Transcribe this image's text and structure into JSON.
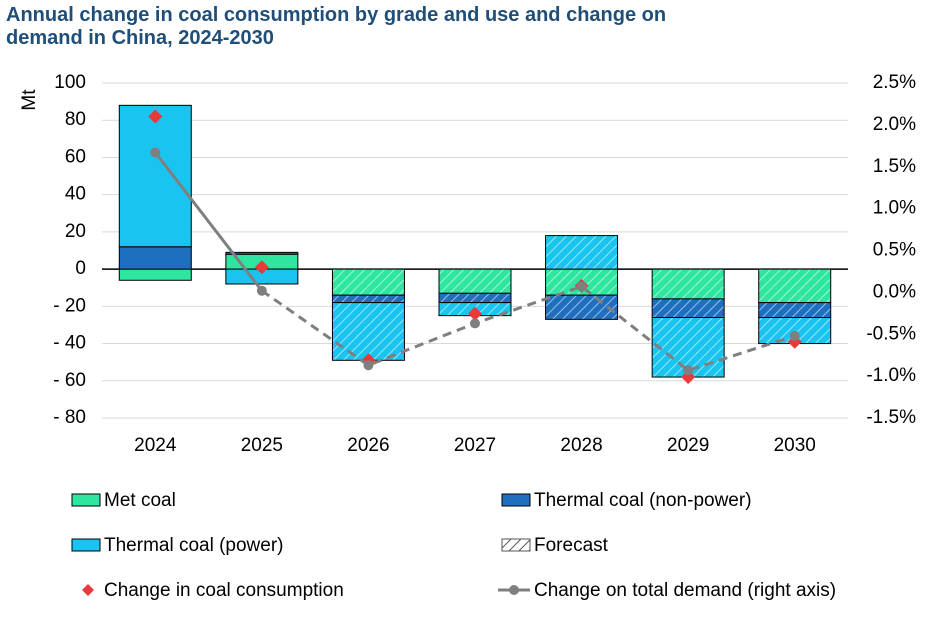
{
  "chart_data": {
    "type": "bar",
    "title": "Annual change in coal consumption by grade and use and change on demand in China, 2024-2030",
    "y_label": "Mt",
    "categories": [
      "2024",
      "2025",
      "2026",
      "2027",
      "2028",
      "2029",
      "2030"
    ],
    "forecast_start": "2026",
    "forecast_label": "Forecast",
    "series": [
      {
        "name": "Met coal",
        "type": "bar",
        "color": "#2ee6a0",
        "values": [
          -6,
          8,
          -14,
          -13,
          -14,
          -16,
          -18
        ]
      },
      {
        "name": "Thermal coal (non-power)",
        "type": "bar",
        "color": "#1f6fc0",
        "values": [
          12,
          1,
          -4,
          -5,
          -13,
          -10,
          -8
        ]
      },
      {
        "name": "Thermal coal (power)",
        "type": "bar",
        "color": "#19c5f0",
        "values": [
          76,
          -8,
          -31,
          -7,
          18,
          -32,
          -14
        ]
      },
      {
        "name": "Change in coal consumption",
        "type": "scatter",
        "color": "#e8393b",
        "values": [
          82,
          1,
          -49,
          -24,
          -9,
          -58,
          -39
        ]
      },
      {
        "name": "Change on total demand (right axis)",
        "type": "line",
        "axis": "y2",
        "color": "#7f7f7f",
        "values": [
          1.67,
          0.02,
          -0.87,
          -0.37,
          0.07,
          -0.93,
          -0.52
        ]
      }
    ],
    "ylim": [
      -80,
      100
    ],
    "yticks": [
      100,
      80,
      60,
      40,
      20,
      0,
      {
        "value": -20,
        "label": "- 20"
      },
      {
        "value": -40,
        "label": "- 40"
      },
      {
        "value": -60,
        "label": "- 60"
      },
      {
        "value": -80,
        "label": "- 80"
      }
    ],
    "y2lim": [
      -1.5,
      2.5
    ],
    "y2ticks": [
      {
        "value": 2.5,
        "label": "2.5%"
      },
      {
        "value": 2.0,
        "label": "2.0%"
      },
      {
        "value": 1.5,
        "label": "1.5%"
      },
      {
        "value": 1.0,
        "label": "1.0%"
      },
      {
        "value": 0.5,
        "label": "0.5%"
      },
      {
        "value": 0.0,
        "label": "0.0%"
      },
      {
        "value": -0.5,
        "label": "-0.5%"
      },
      {
        "value": -1.0,
        "label": "-1.0%"
      },
      {
        "value": -1.5,
        "label": "-1.5%"
      }
    ],
    "grid": true
  }
}
